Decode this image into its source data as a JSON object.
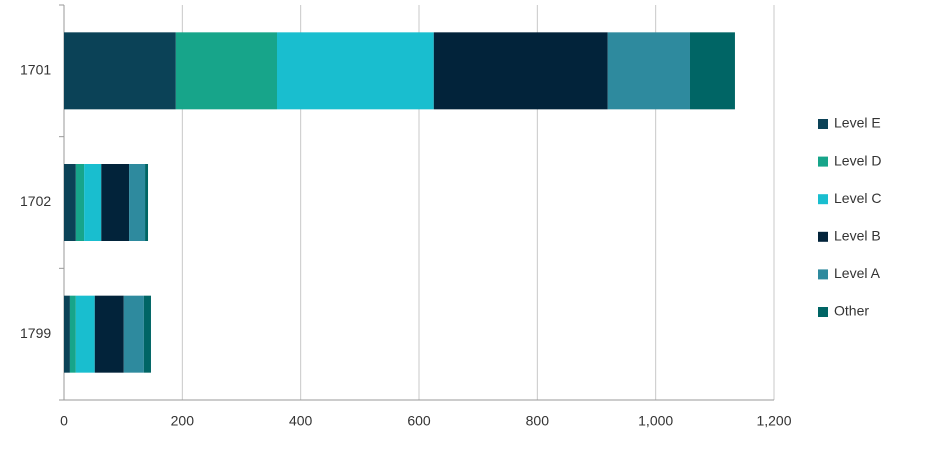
{
  "chart_data": {
    "type": "stacked-barh",
    "categories": [
      "1701",
      "1702",
      "1799"
    ],
    "series": [
      {
        "name": "Level E",
        "color": "#0b4257",
        "values": [
          189,
          20,
          10
        ]
      },
      {
        "name": "Level D",
        "color": "#17a58a",
        "values": [
          171,
          14,
          10
        ]
      },
      {
        "name": "Level C",
        "color": "#19becf",
        "values": [
          265,
          29,
          32
        ]
      },
      {
        "name": "Level B",
        "color": "#02233a",
        "values": [
          294,
          47,
          49
        ]
      },
      {
        "name": "Level A",
        "color": "#2e8a9e",
        "values": [
          139,
          27,
          34
        ]
      },
      {
        "name": "Other",
        "color": "#006565",
        "values": [
          76,
          5,
          12
        ]
      }
    ],
    "xlim": [
      0,
      1200
    ],
    "xticks": [
      0,
      200,
      400,
      600,
      800,
      {
        "value": 1000,
        "label": "1,000"
      },
      {
        "value": 1200,
        "label": "1,200"
      }
    ],
    "grid": true,
    "legend": "right"
  }
}
